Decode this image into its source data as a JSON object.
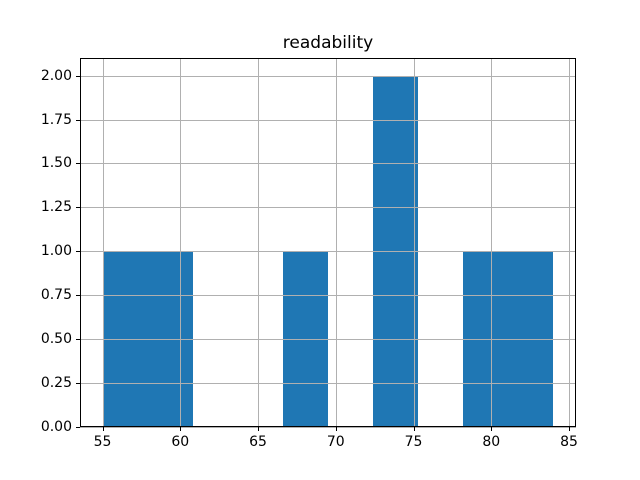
{
  "chart_data": {
    "type": "bar",
    "subtype": "histogram",
    "title": "readability",
    "xlabel": "",
    "ylabel": "",
    "bin_edges": [
      55,
      57.9,
      60.8,
      63.7,
      66.6,
      69.5,
      72.4,
      75.3,
      78.2,
      81.1,
      84
    ],
    "counts": [
      1,
      1,
      0,
      0,
      1,
      0,
      2,
      0,
      1,
      1
    ],
    "visible_bars": [
      {
        "x_start": 55.0,
        "x_end": 60.8,
        "height": 1
      },
      {
        "x_start": 66.6,
        "x_end": 69.5,
        "height": 1
      },
      {
        "x_start": 72.4,
        "x_end": 75.3,
        "height": 2
      },
      {
        "x_start": 78.2,
        "x_end": 84.0,
        "height": 1
      }
    ],
    "xlim": [
      53.55,
      85.45
    ],
    "ylim": [
      0,
      2.1
    ],
    "x_ticks": [
      55,
      60,
      65,
      70,
      75,
      80,
      85
    ],
    "x_tick_labels": [
      "55",
      "60",
      "65",
      "70",
      "75",
      "80",
      "85"
    ],
    "y_ticks": [
      0,
      0.25,
      0.5,
      0.75,
      1.0,
      1.25,
      1.5,
      1.75,
      2.0
    ],
    "y_tick_labels": [
      "0.00",
      "0.25",
      "0.50",
      "0.75",
      "1.00",
      "1.25",
      "1.50",
      "1.75",
      "2.00"
    ],
    "grid": true,
    "legend": null,
    "colors": {
      "bar": "#1f77b4",
      "grid": "#b0b0b0",
      "spine": "#000000",
      "text": "#000000",
      "background": "#ffffff"
    }
  }
}
